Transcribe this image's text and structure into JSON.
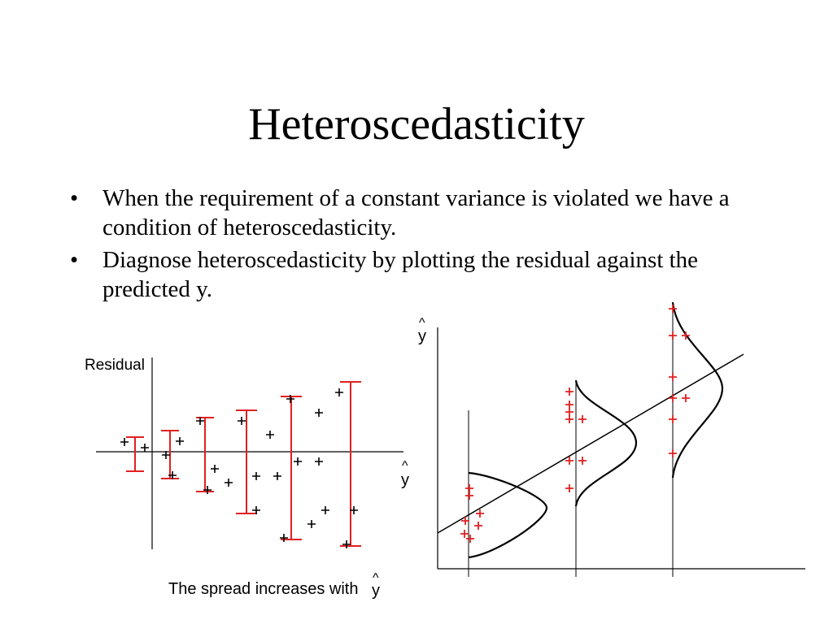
{
  "slide": {
    "title": "Heteroscedasticity",
    "bullets": [
      "When the requirement of a constant variance is violated we have a condition of heteroscedasticity.",
      "Diagnose heteroscedasticity by plotting the residual against the predicted y."
    ],
    "bullet_symbol": "•"
  },
  "residual_plot": {
    "ylabel": "Residual",
    "xlabel_hat": "^",
    "xlabel": "y",
    "caption": "The spread increases with",
    "caption_hat": "^",
    "caption_var": "y"
  },
  "regression_plot": {
    "ylabel_hat": "^",
    "ylabel": "y"
  },
  "colors": {
    "accent": "#e02020",
    "ink": "#000000"
  }
}
